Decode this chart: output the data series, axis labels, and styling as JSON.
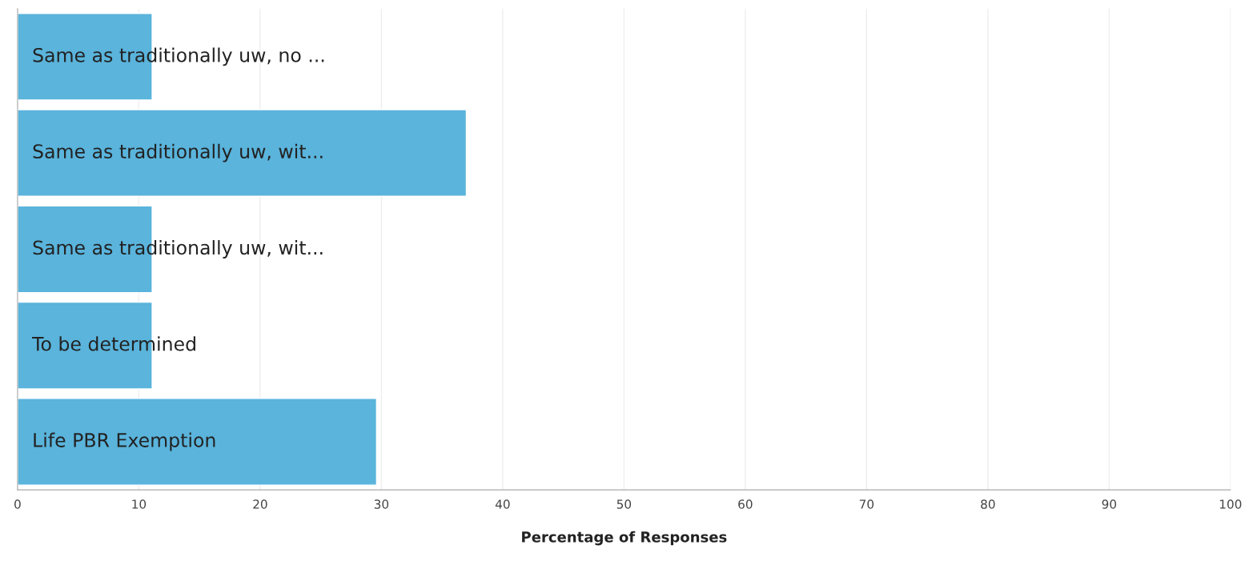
{
  "chart_data": {
    "type": "bar",
    "orientation": "horizontal",
    "xlabel": "Percentage of Responses",
    "categories": [
      "Same as traditionally uw, no ...",
      "Same as traditionally uw, wit...",
      "Same as traditionally uw, wit...",
      "To be determined",
      "Life PBR Exemption"
    ],
    "values": [
      11.1,
      37.0,
      11.1,
      11.1,
      29.6
    ],
    "color": "#5ab4dc",
    "xlim": [
      0,
      100
    ],
    "xticks": [
      0,
      10,
      20,
      30,
      40,
      50,
      60,
      70,
      80,
      90,
      100
    ],
    "grid": "x"
  }
}
